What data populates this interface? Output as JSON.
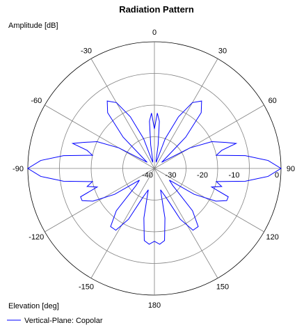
{
  "chart_data": {
    "type": "polar-line",
    "title": "Radiation Pattern",
    "radial_axis_label": "Amplitude [dB]",
    "angular_axis_label": "Elevation [deg]",
    "radial_range": [
      -40,
      0
    ],
    "radial_ticks": [
      -40,
      -30,
      -20,
      -10,
      0
    ],
    "angle_ticks": [
      0,
      30,
      60,
      90,
      120,
      150,
      180,
      -150,
      -120,
      -90,
      -60,
      -30
    ],
    "angle_tick_labels": [
      "0",
      "30",
      "60",
      "90",
      "120",
      "150",
      "180",
      "-150",
      "-120",
      "-90",
      "-60",
      "-30"
    ],
    "angle_direction": "clockwise",
    "angle_zero_location": "top",
    "grid": true,
    "legend_position": "bottom-left",
    "series": [
      {
        "name": "Vertical-Plane: Copolar",
        "color": "#0000ff",
        "points": [
          [
            0,
            -27.5
          ],
          [
            3,
            -22.5
          ],
          [
            6,
            -25
          ],
          [
            9,
            -32.5
          ],
          [
            12,
            -37.5
          ],
          [
            16,
            -38
          ],
          [
            20,
            -30
          ],
          [
            25,
            -22
          ],
          [
            30,
            -16
          ],
          [
            35,
            -14
          ],
          [
            40,
            -17
          ],
          [
            45,
            -26
          ],
          [
            50,
            -37
          ],
          [
            55,
            -35
          ],
          [
            60,
            -27
          ],
          [
            65,
            -20
          ],
          [
            70,
            -16
          ],
          [
            73,
            -13
          ],
          [
            75,
            -18
          ],
          [
            78,
            -20
          ],
          [
            82,
            -11
          ],
          [
            86,
            -4
          ],
          [
            90,
            0
          ],
          [
            94,
            -4
          ],
          [
            98,
            -11
          ],
          [
            102,
            -20
          ],
          [
            105,
            -18
          ],
          [
            108,
            -21
          ],
          [
            111,
            -15
          ],
          [
            114,
            -15
          ],
          [
            118,
            -18
          ],
          [
            123,
            -25
          ],
          [
            128,
            -34
          ],
          [
            133,
            -32
          ],
          [
            138,
            -22
          ],
          [
            143,
            -17
          ],
          [
            148,
            -17
          ],
          [
            153,
            -22
          ],
          [
            158,
            -30
          ],
          [
            164,
            -33
          ],
          [
            168,
            -24
          ],
          [
            172,
            -17
          ],
          [
            176,
            -16
          ],
          [
            180,
            -17
          ],
          [
            184,
            -16
          ],
          [
            188,
            -17
          ],
          [
            192,
            -24
          ],
          [
            196,
            -33
          ],
          [
            202,
            -30
          ],
          [
            207,
            -22
          ],
          [
            212,
            -17
          ],
          [
            217,
            -17
          ],
          [
            222,
            -22
          ],
          [
            227,
            -32
          ],
          [
            232,
            -34
          ],
          [
            237,
            -25
          ],
          [
            242,
            -18
          ],
          [
            246,
            -15
          ],
          [
            249,
            -15
          ],
          [
            252,
            -21
          ],
          [
            255,
            -18
          ],
          [
            258,
            -20
          ],
          [
            262,
            -11
          ],
          [
            266,
            -4
          ],
          [
            270,
            0
          ],
          [
            274,
            -4
          ],
          [
            278,
            -11
          ],
          [
            282,
            -20
          ],
          [
            285,
            -18
          ],
          [
            287,
            -13
          ],
          [
            290,
            -16
          ],
          [
            295,
            -20
          ],
          [
            300,
            -27
          ],
          [
            305,
            -35
          ],
          [
            310,
            -37
          ],
          [
            315,
            -26
          ],
          [
            320,
            -17
          ],
          [
            325,
            -14
          ],
          [
            330,
            -16
          ],
          [
            335,
            -22
          ],
          [
            340,
            -30
          ],
          [
            344,
            -38
          ],
          [
            348,
            -37.5
          ],
          [
            351,
            -32.5
          ],
          [
            354,
            -25
          ],
          [
            357,
            -22.5
          ],
          [
            360,
            -27.5
          ]
        ]
      }
    ]
  }
}
